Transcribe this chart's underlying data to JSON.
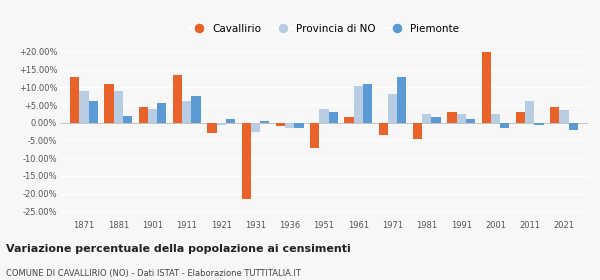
{
  "years": [
    1871,
    1881,
    1901,
    1911,
    1921,
    1931,
    1936,
    1951,
    1961,
    1971,
    1981,
    1991,
    2001,
    2011,
    2021
  ],
  "cavallirio": [
    13.0,
    11.0,
    4.5,
    13.5,
    -3.0,
    -21.5,
    -1.0,
    -7.0,
    1.5,
    -3.5,
    -4.5,
    3.0,
    20.0,
    3.0,
    4.5
  ],
  "provincia_no": [
    9.0,
    9.0,
    4.0,
    6.0,
    -0.5,
    -2.5,
    -1.5,
    4.0,
    10.5,
    8.0,
    2.5,
    2.5,
    2.5,
    6.0,
    3.5
  ],
  "piemonte": [
    6.0,
    2.0,
    5.5,
    7.5,
    1.0,
    0.5,
    -1.5,
    3.0,
    11.0,
    13.0,
    1.5,
    1.0,
    -1.5,
    -0.5,
    -2.0
  ],
  "color_cavallirio": "#e8622a",
  "color_provincia": "#b8cce4",
  "color_piemonte": "#5b9bd5",
  "title": "Variazione percentuale della popolazione ai censimenti",
  "subtitle": "COMUNE DI CAVALLIRIO (NO) - Dati ISTAT - Elaborazione TUTTITALIA.IT",
  "ylim_min": -27,
  "ylim_max": 22,
  "yticks": [
    -25,
    -20,
    -15,
    -10,
    -5,
    0,
    5,
    10,
    15,
    20
  ],
  "ytick_labels": [
    "-25.00%",
    "-20.00%",
    "-15.00%",
    "-10.00%",
    "-5.00%",
    "0.00%",
    "+5.00%",
    "+10.00%",
    "+15.00%",
    "+20.00%"
  ],
  "background_color": "#f7f7f7",
  "grid_color": "#ffffff",
  "legend_labels": [
    "Cavallirio",
    "Provincia di NO",
    "Piemonte"
  ]
}
